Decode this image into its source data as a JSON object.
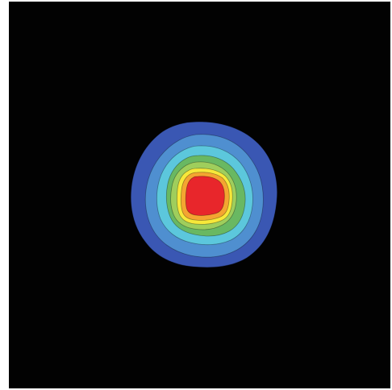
{
  "image": {
    "description_type": "filled contour / intensity profile",
    "background_color": "#020202",
    "levels": [
      {
        "name": "level-1",
        "color": "#3a57b3"
      },
      {
        "name": "level-2",
        "color": "#4f8fd0"
      },
      {
        "name": "level-3",
        "color": "#5cc7dc"
      },
      {
        "name": "level-4",
        "color": "#69b862"
      },
      {
        "name": "level-5",
        "color": "#9fce5c"
      },
      {
        "name": "level-6",
        "color": "#f7e83a"
      },
      {
        "name": "level-7",
        "color": "#f4a531"
      },
      {
        "name": "peak",
        "color": "#e8262b"
      }
    ]
  }
}
